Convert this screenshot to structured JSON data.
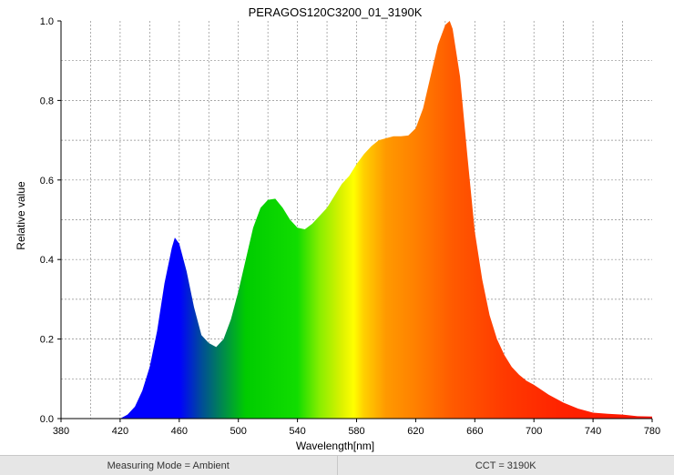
{
  "chart_data": {
    "type": "area",
    "title": "PERAGOS120C3200_01_3190K",
    "xlabel": "Wavelength[nm]",
    "ylabel": "Relative value",
    "xlim": [
      380,
      780
    ],
    "ylim": [
      0,
      1.0
    ],
    "xticks": [
      380,
      420,
      460,
      500,
      540,
      580,
      620,
      660,
      700,
      740,
      780
    ],
    "yticks": [
      0.0,
      0.2,
      0.4,
      0.6,
      0.8,
      1.0
    ],
    "xtick_labels": [
      "380",
      "420",
      "460",
      "500",
      "540",
      "580",
      "620",
      "660",
      "700",
      "740",
      "780"
    ],
    "ytick_labels": [
      "0.0",
      "0.2",
      "0.4",
      "0.6",
      "0.8",
      "1.0"
    ],
    "grid": true,
    "fill": "spectral-gradient",
    "series": [
      {
        "x": [
          420,
          425,
          430,
          435,
          440,
          445,
          450,
          455,
          457,
          460,
          465,
          470,
          475,
          480,
          485,
          490,
          495,
          500,
          505,
          510,
          515,
          520,
          525,
          530,
          535,
          540,
          545,
          550,
          555,
          560,
          565,
          570,
          575,
          580,
          585,
          590,
          595,
          600,
          605,
          610,
          615,
          620,
          625,
          630,
          635,
          640,
          643,
          645,
          650,
          655,
          660,
          665,
          670,
          675,
          680,
          685,
          690,
          695,
          700,
          710,
          720,
          730,
          740,
          750,
          760,
          770,
          780
        ],
        "y": [
          0.0,
          0.01,
          0.03,
          0.07,
          0.13,
          0.22,
          0.34,
          0.43,
          0.455,
          0.44,
          0.37,
          0.28,
          0.21,
          0.19,
          0.18,
          0.2,
          0.25,
          0.32,
          0.4,
          0.48,
          0.53,
          0.55,
          0.553,
          0.53,
          0.5,
          0.48,
          0.476,
          0.49,
          0.51,
          0.53,
          0.56,
          0.59,
          0.61,
          0.64,
          0.665,
          0.685,
          0.7,
          0.705,
          0.71,
          0.71,
          0.712,
          0.73,
          0.78,
          0.86,
          0.94,
          0.99,
          1.0,
          0.98,
          0.86,
          0.66,
          0.47,
          0.35,
          0.26,
          0.2,
          0.16,
          0.13,
          0.11,
          0.095,
          0.085,
          0.06,
          0.04,
          0.025,
          0.015,
          0.012,
          0.01,
          0.006,
          0.005
        ]
      }
    ]
  },
  "footer": {
    "measuring_mode": "Measuring Mode = Ambient",
    "cct": "CCT = 3190K"
  },
  "colors": {
    "grid": "#8c8c8c",
    "axis": "#000000",
    "footer_bg": "#e6e6e6"
  }
}
